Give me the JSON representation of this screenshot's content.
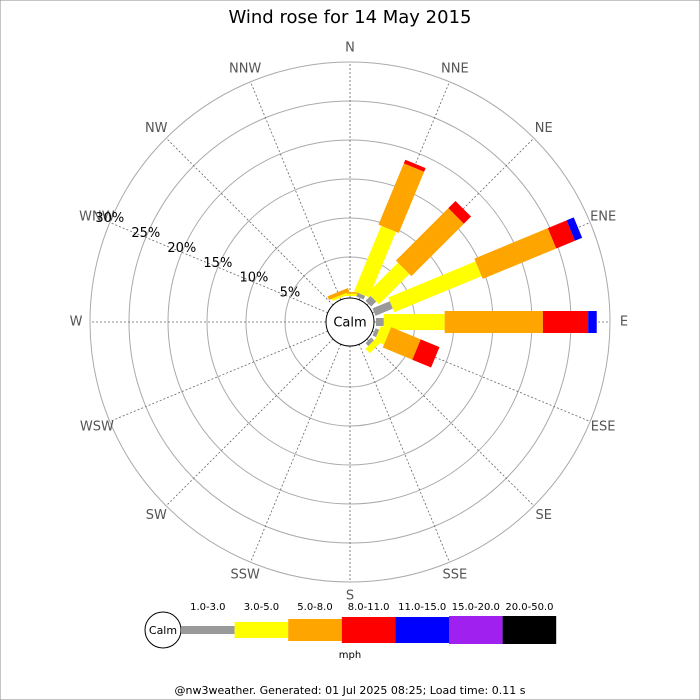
{
  "chart_data": {
    "type": "windrose",
    "title": "Wind rose for 14 May 2015",
    "categories": [
      "N",
      "NNE",
      "NE",
      "ENE",
      "E",
      "ESE",
      "SE",
      "SSE",
      "S",
      "SSW",
      "SW",
      "WSW",
      "W",
      "WNW",
      "NW",
      "NNW"
    ],
    "center_label": "Calm",
    "rlim": [
      0,
      30
    ],
    "rticks": [
      {
        "value": 5,
        "label": "5%"
      },
      {
        "value": 10,
        "label": "10%"
      },
      {
        "value": 15,
        "label": "15%"
      },
      {
        "value": 20,
        "label": "20%"
      },
      {
        "value": 25,
        "label": "25%"
      },
      {
        "value": 30,
        "label": "30%"
      }
    ],
    "grid": true,
    "legend_unit": "mph",
    "series": [
      {
        "name": "1.0-3.0",
        "color": "#999999",
        "values": [
          0,
          0.5,
          0.9,
          2.4,
          1.0,
          0.5,
          0.5,
          0,
          0,
          0,
          0,
          0,
          0,
          0,
          0,
          0
        ]
      },
      {
        "name": "3.0-5.0",
        "color": "#ffff00",
        "values": [
          0.3,
          9.1,
          5.5,
          12.1,
          7.8,
          1.3,
          0.8,
          0,
          0,
          0,
          0,
          0,
          0,
          0,
          0,
          0.3
        ]
      },
      {
        "name": "5.0-8.0",
        "color": "#ffa500",
        "values": [
          0.2,
          8.5,
          9.5,
          10.2,
          12.6,
          4.1,
          0,
          0,
          0,
          0,
          0,
          0,
          0,
          0,
          0,
          0.5
        ]
      },
      {
        "name": "8.0-11.0",
        "color": "#ff0000",
        "values": [
          0,
          0.5,
          1.3,
          2.6,
          5.8,
          2.6,
          0,
          0,
          0,
          0,
          0,
          0,
          0,
          0,
          0,
          0
        ]
      },
      {
        "name": "11.0-15.0",
        "color": "#0000ff",
        "values": [
          0,
          0,
          0,
          1.0,
          1.1,
          0,
          0,
          0,
          0,
          0,
          0,
          0,
          0,
          0,
          0,
          0
        ]
      },
      {
        "name": "15.0-20.0",
        "color": "#a020f0",
        "values": [
          0,
          0,
          0,
          0,
          0,
          0,
          0,
          0,
          0,
          0,
          0,
          0,
          0,
          0,
          0,
          0
        ]
      },
      {
        "name": "20.0-50.0",
        "color": "#000000",
        "values": [
          0,
          0,
          0,
          0,
          0,
          0,
          0,
          0,
          0,
          0,
          0,
          0,
          0,
          0,
          0,
          0
        ]
      }
    ],
    "footer": "@nw3weather. Generated: 01 Jul 2025 08:25; Load time: 0.11 s"
  }
}
